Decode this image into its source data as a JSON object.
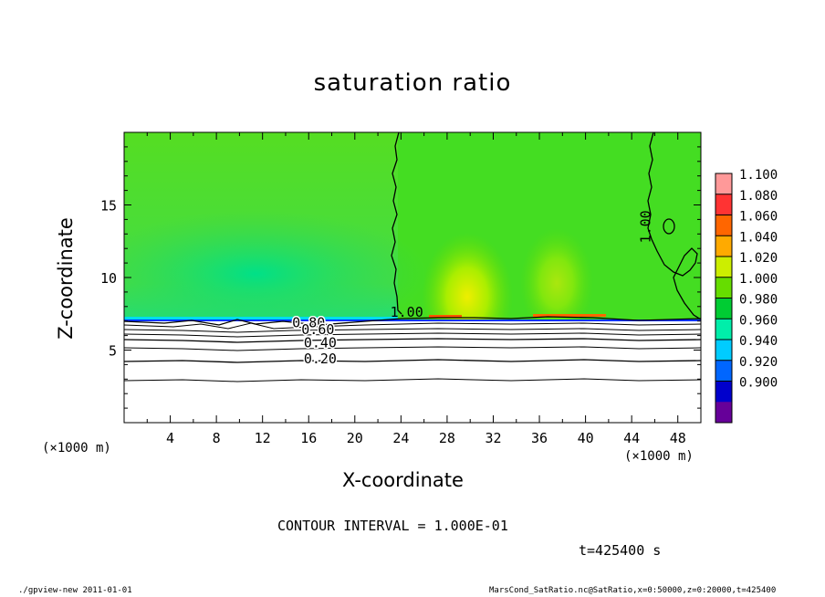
{
  "chart_data": {
    "type": "heatmap",
    "title": "saturation ratio",
    "xlabel": "X-coordinate",
    "ylabel": "Z-coordinate",
    "x_unit_label": "(×1000 m)",
    "xlim": [
      0,
      50
    ],
    "ylim": [
      0,
      20
    ],
    "x_ticks": [
      4,
      8,
      12,
      16,
      20,
      24,
      28,
      32,
      36,
      40,
      44,
      48
    ],
    "x_tick_labels": [
      "4",
      "8",
      "12",
      "16",
      "20",
      "24",
      "28",
      "32",
      "36",
      "40",
      "44",
      "48"
    ],
    "y_ticks": [
      5,
      10,
      15
    ],
    "y_tick_labels": [
      "5",
      "10",
      "15"
    ],
    "colorbar": {
      "levels": [
        "1.100",
        "1.080",
        "1.060",
        "1.040",
        "1.020",
        "1.000",
        "0.980",
        "0.960",
        "0.940",
        "0.920",
        "0.900"
      ],
      "colors": [
        "#ff9999",
        "#ff3333",
        "#ff6600",
        "#ffaa00",
        "#ccee00",
        "#66dd00",
        "#00cc33",
        "#00eeaa",
        "#00ccff",
        "#0066ff",
        "#0000cc",
        "#660099"
      ]
    },
    "contour_labels": [
      {
        "text": "1.00",
        "x": 24.5,
        "z": 7.6
      },
      {
        "text": "1.00",
        "x": 45.2,
        "z": 13.5
      },
      {
        "text": "0.80",
        "x": 16.0,
        "z": 6.9
      },
      {
        "text": "0.60",
        "x": 16.8,
        "z": 6.4
      },
      {
        "text": "0.40",
        "x": 17.0,
        "z": 5.5
      },
      {
        "text": "0.20",
        "x": 17.0,
        "z": 4.4
      }
    ],
    "contour_interval_text": "CONTOUR INTERVAL = 1.000E-01",
    "time_text": "t=425400 s"
  },
  "footer": {
    "left": "./gpview-new   2011-01-01",
    "right": "MarsCond_SatRatio.nc@SatRatio,x=0:50000,z=0:20000,t=425400"
  }
}
